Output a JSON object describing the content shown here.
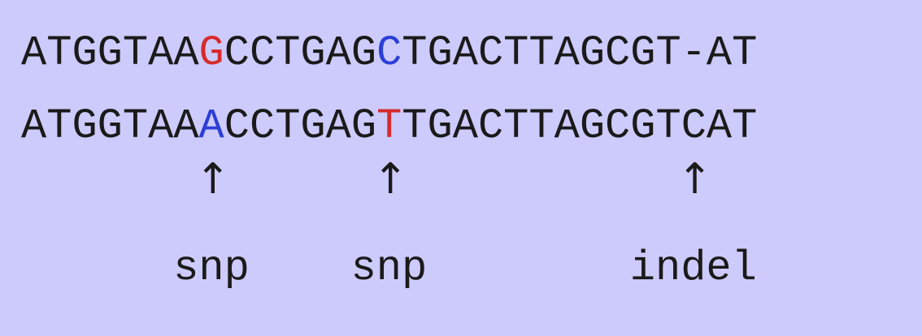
{
  "sequences": [
    {
      "bases": [
        "A",
        "T",
        "G",
        "G",
        "T",
        "A",
        "A",
        "G",
        "C",
        "C",
        "T",
        "G",
        "A",
        "G",
        "C",
        "T",
        "G",
        "A",
        "C",
        "T",
        "T",
        "A",
        "G",
        "C",
        "G",
        "T",
        "-",
        "A",
        "T"
      ],
      "highlights": {
        "7": "#d62b2b",
        "14": "#2b3fd6"
      }
    },
    {
      "bases": [
        "A",
        "T",
        "G",
        "G",
        "T",
        "A",
        "A",
        "A",
        "C",
        "C",
        "T",
        "G",
        "A",
        "G",
        "T",
        "T",
        "G",
        "A",
        "C",
        "T",
        "T",
        "A",
        "G",
        "C",
        "G",
        "T",
        "C",
        "A",
        "T"
      ],
      "highlights": {
        "7": "#2b3fd6",
        "14": "#d62b2b"
      }
    }
  ],
  "markers": [
    {
      "position": 7,
      "arrow": "↑",
      "label": "snp"
    },
    {
      "position": 14,
      "arrow": "↑",
      "label": "snp"
    },
    {
      "position": 26,
      "arrow": "↑",
      "label": "indel"
    }
  ],
  "colors": {
    "background": "#cccbfb",
    "text": "#1a1a1a",
    "red": "#d62b2b",
    "blue": "#2b3fd6"
  }
}
